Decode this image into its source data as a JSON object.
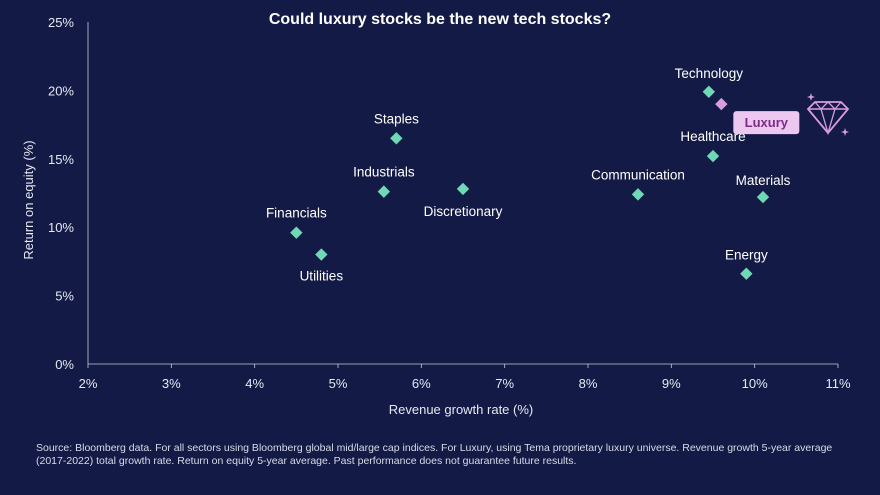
{
  "colors": {
    "background": "#131a45",
    "sector_marker": "#6fd8b4",
    "luxury_marker": "#d99ce0",
    "luxury_badge_bg": "#ecc7f0",
    "luxury_badge_text": "#7b2d86",
    "axis": "#c9ccd8"
  },
  "icons": [
    "diamond-icon",
    "sparkle-icon"
  ],
  "chart_data": {
    "type": "scatter",
    "title": "Could luxury stocks be the new tech stocks?",
    "xlabel": "Revenue growth rate (%)",
    "ylabel": "Return on equity (%)",
    "xlim": [
      2,
      11
    ],
    "ylim": [
      0,
      25
    ],
    "x_ticks": [
      "2%",
      "3%",
      "4%",
      "5%",
      "6%",
      "7%",
      "8%",
      "9%",
      "10%",
      "11%"
    ],
    "y_ticks": [
      "0%",
      "5%",
      "10%",
      "15%",
      "20%",
      "25%"
    ],
    "grid": false,
    "points": [
      {
        "label": "Financials",
        "x": 4.5,
        "y": 9.6
      },
      {
        "label": "Utilities",
        "x": 4.8,
        "y": 8.0
      },
      {
        "label": "Industrials",
        "x": 5.55,
        "y": 12.6
      },
      {
        "label": "Staples",
        "x": 5.7,
        "y": 16.5
      },
      {
        "label": "Discretionary",
        "x": 6.5,
        "y": 12.8
      },
      {
        "label": "Communication",
        "x": 8.6,
        "y": 12.4
      },
      {
        "label": "Technology",
        "x": 9.45,
        "y": 19.9
      },
      {
        "label": "Healthcare",
        "x": 9.5,
        "y": 15.2
      },
      {
        "label": "Materials",
        "x": 10.1,
        "y": 12.2
      },
      {
        "label": "Energy",
        "x": 9.9,
        "y": 6.6
      },
      {
        "label": "Luxury",
        "x": 9.6,
        "y": 19.0,
        "highlight": true
      }
    ]
  },
  "source_note": "Source: Bloomberg data. For all sectors using Bloomberg global mid/large cap indices. For Luxury, using Tema proprietary luxury universe. Revenue growth 5-year average (2017-2022) total growth rate. Return on equity 5-year average. Past performance does not guarantee future results."
}
